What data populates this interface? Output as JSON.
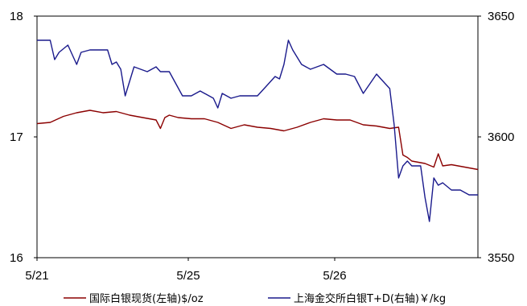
{
  "chart_data": {
    "type": "line",
    "x_ticks": [
      "5/21",
      "5/25",
      "5/26"
    ],
    "y_left": {
      "ticks": [
        "16",
        "17",
        "18"
      ],
      "range": [
        16,
        18
      ]
    },
    "y_right": {
      "ticks": [
        "3550",
        "3600",
        "3650"
      ],
      "range": [
        3550,
        3650
      ]
    },
    "grid": false,
    "legend_position": "bottom",
    "series": [
      {
        "name": "国际白银现货(左轴)$/oz",
        "axis": "left",
        "color": "#8b0000",
        "x": [
          0,
          0.03,
          0.06,
          0.09,
          0.12,
          0.15,
          0.18,
          0.21,
          0.24,
          0.27,
          0.28,
          0.29,
          0.3,
          0.32,
          0.35,
          0.38,
          0.41,
          0.44,
          0.47,
          0.5,
          0.53,
          0.56,
          0.59,
          0.62,
          0.65,
          0.68,
          0.71,
          0.74,
          0.77,
          0.8,
          0.82,
          0.83,
          0.84,
          0.85,
          0.88,
          0.9,
          0.91,
          0.92,
          0.94,
          0.97,
          1.0
        ],
        "values": [
          17.11,
          17.12,
          17.17,
          17.2,
          17.22,
          17.2,
          17.21,
          17.18,
          17.16,
          17.14,
          17.07,
          17.16,
          17.18,
          17.16,
          17.15,
          17.15,
          17.12,
          17.07,
          17.1,
          17.08,
          17.07,
          17.05,
          17.08,
          17.12,
          17.15,
          17.14,
          17.14,
          17.1,
          17.09,
          17.07,
          17.08,
          16.85,
          16.83,
          16.8,
          16.78,
          16.75,
          16.86,
          16.76,
          16.77,
          16.75,
          16.73
        ]
      },
      {
        "name": "上海金交所白银T+D(右轴)￥/kg",
        "axis": "right",
        "color": "#1a1a8c",
        "x": [
          0,
          0.03,
          0.04,
          0.05,
          0.07,
          0.09,
          0.1,
          0.12,
          0.16,
          0.17,
          0.18,
          0.19,
          0.2,
          0.22,
          0.25,
          0.27,
          0.28,
          0.3,
          0.33,
          0.35,
          0.37,
          0.4,
          0.41,
          0.42,
          0.44,
          0.46,
          0.48,
          0.5,
          0.52,
          0.54,
          0.55,
          0.56,
          0.57,
          0.58,
          0.6,
          0.62,
          0.65,
          0.68,
          0.7,
          0.72,
          0.74,
          0.77,
          0.78,
          0.79,
          0.8,
          0.81,
          0.82,
          0.83,
          0.84,
          0.85,
          0.87,
          0.88,
          0.89,
          0.9,
          0.91,
          0.92,
          0.94,
          0.96,
          0.98,
          1.0
        ],
        "values": [
          3640,
          3640,
          3632,
          3635,
          3638,
          3630,
          3635,
          3636,
          3636,
          3630,
          3631,
          3628,
          3617,
          3629,
          3627,
          3629,
          3627,
          3627,
          3617,
          3617,
          3619,
          3616,
          3612,
          3618,
          3616,
          3617,
          3617,
          3617,
          3621,
          3625,
          3624,
          3630,
          3640,
          3636,
          3630,
          3628,
          3630,
          3626,
          3626,
          3625,
          3618,
          3626,
          3624,
          3622,
          3620,
          3605,
          3583,
          3588,
          3590,
          3588,
          3588,
          3575,
          3565,
          3583,
          3580,
          3581,
          3578,
          3578,
          3576,
          3576
        ]
      }
    ]
  },
  "legend": [
    {
      "label": "国际白银现货(左轴)$/oz",
      "color": "#8b0000"
    },
    {
      "label": "上海金交所白银T+D(右轴)￥/kg",
      "color": "#1a1a8c"
    }
  ]
}
